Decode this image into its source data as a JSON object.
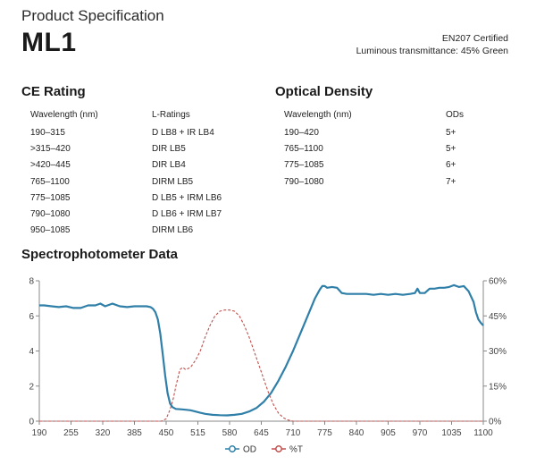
{
  "header": {
    "subtitle": "Product Specification",
    "model": "ML1",
    "certification": "EN207 Certified",
    "luminous": "Luminous transmittance: 45% Green"
  },
  "ce_rating": {
    "title": "CE Rating",
    "col1": "Wavelength (nm)",
    "col2": "L-Ratings",
    "rows": [
      [
        "190–315",
        "D LB8 + IR LB4"
      ],
      [
        ">315–420",
        "DIR LB5"
      ],
      [
        ">420–445",
        "DIR LB4"
      ],
      [
        "765–1100",
        "DIRM LB5"
      ],
      [
        "775–1085",
        "D LB5 + IRM LB6"
      ],
      [
        "790–1080",
        "D LB6 + IRM LB7"
      ],
      [
        "950–1085",
        "DIRM LB6"
      ]
    ]
  },
  "optical_density": {
    "title": "Optical Density",
    "col1": "Wavelength (nm)",
    "col2": "ODs",
    "rows": [
      [
        "190–420",
        "5+"
      ],
      [
        "765–1100",
        "5+"
      ],
      [
        "775–1085",
        "6+"
      ],
      [
        "790–1080",
        "7+"
      ]
    ]
  },
  "chart_data": {
    "type": "line",
    "title": "Spectrophotometer Data",
    "xlabel": "",
    "ylabel": "",
    "xlim": [
      190,
      1100
    ],
    "ylim": [
      0,
      8
    ],
    "y2lim": [
      0,
      60
    ],
    "x_ticks": [
      "190",
      "255",
      "320",
      "385",
      "450",
      "515",
      "580",
      "645",
      "710",
      "775",
      "840",
      "905",
      "970",
      "1035",
      "1100"
    ],
    "y_ticks": [
      "0",
      "2",
      "4",
      "6",
      "8"
    ],
    "y2_ticks": [
      "0%",
      "15%",
      "30%",
      "45%",
      "60%"
    ],
    "grid": false,
    "legend": "bottom",
    "series": [
      {
        "name": "OD",
        "axis": "left",
        "color": "#2f7fa8",
        "style": "solid",
        "x": [
          190,
          200,
          215,
          230,
          245,
          260,
          275,
          290,
          305,
          315,
          325,
          340,
          355,
          370,
          385,
          400,
          410,
          418,
          423,
          428,
          433,
          438,
          443,
          448,
          453,
          458,
          463,
          470,
          480,
          490,
          500,
          510,
          520,
          530,
          545,
          560,
          575,
          590,
          605,
          620,
          635,
          650,
          665,
          680,
          695,
          710,
          725,
          740,
          755,
          765,
          770,
          775,
          780,
          790,
          800,
          810,
          820,
          830,
          845,
          860,
          875,
          890,
          905,
          920,
          935,
          950,
          960,
          965,
          970,
          980,
          990,
          1000,
          1010,
          1020,
          1030,
          1040,
          1050,
          1060,
          1070,
          1080,
          1085,
          1090,
          1095,
          1100
        ],
        "values": [
          6.6,
          6.6,
          6.55,
          6.5,
          6.55,
          6.45,
          6.45,
          6.6,
          6.6,
          6.7,
          6.55,
          6.7,
          6.55,
          6.5,
          6.55,
          6.55,
          6.55,
          6.5,
          6.4,
          6.2,
          5.8,
          5.0,
          3.8,
          2.6,
          1.6,
          1.0,
          0.8,
          0.7,
          0.68,
          0.65,
          0.62,
          0.55,
          0.48,
          0.42,
          0.36,
          0.34,
          0.33,
          0.36,
          0.42,
          0.55,
          0.75,
          1.1,
          1.6,
          2.3,
          3.1,
          4.0,
          5.0,
          6.0,
          7.0,
          7.5,
          7.7,
          7.7,
          7.6,
          7.65,
          7.6,
          7.3,
          7.25,
          7.25,
          7.25,
          7.25,
          7.2,
          7.25,
          7.2,
          7.25,
          7.2,
          7.25,
          7.3,
          7.55,
          7.3,
          7.3,
          7.55,
          7.55,
          7.6,
          7.6,
          7.65,
          7.75,
          7.65,
          7.7,
          7.4,
          6.8,
          6.2,
          5.8,
          5.6,
          5.45
        ]
      },
      {
        "name": "%T",
        "axis": "right",
        "color": "#c0504d",
        "style": "dashed",
        "x": [
          190,
          420,
          440,
          450,
          458,
          465,
          470,
          478,
          484,
          490,
          500,
          510,
          520,
          530,
          540,
          550,
          560,
          570,
          580,
          590,
          600,
          610,
          620,
          630,
          640,
          650,
          660,
          670,
          680,
          690,
          700,
          710,
          1100
        ],
        "values": [
          0,
          0,
          0,
          1,
          5,
          10,
          15,
          22,
          23,
          22,
          23,
          26,
          30,
          36,
          41,
          45,
          47,
          47.5,
          47.5,
          47,
          45,
          41,
          36,
          30,
          24,
          18,
          12,
          7,
          3.5,
          1.5,
          0.5,
          0,
          0
        ]
      }
    ]
  }
}
